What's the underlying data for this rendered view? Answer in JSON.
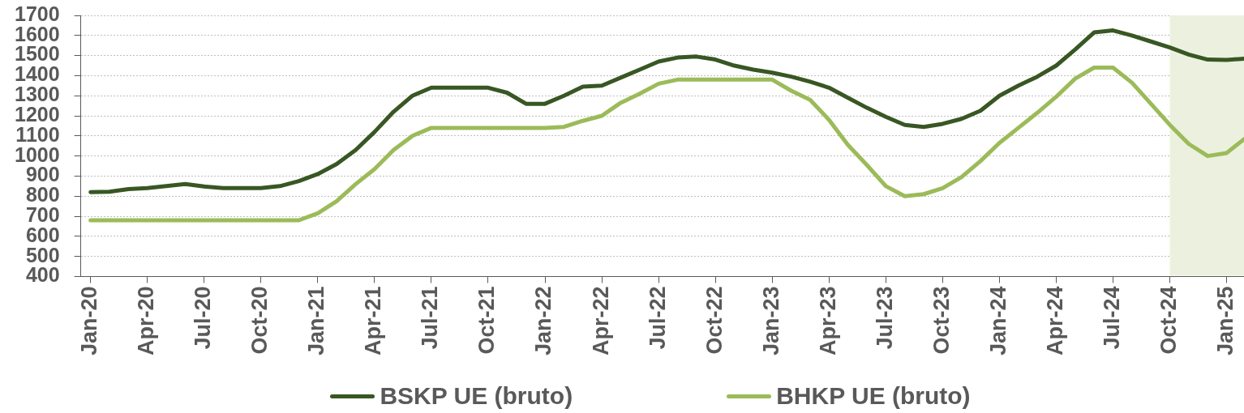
{
  "chart_data": {
    "type": "line",
    "x": [
      "2020-01",
      "2020-02",
      "2020-03",
      "2020-04",
      "2020-05",
      "2020-06",
      "2020-07",
      "2020-08",
      "2020-09",
      "2020-10",
      "2020-11",
      "2020-12",
      "2021-01",
      "2021-02",
      "2021-03",
      "2021-04",
      "2021-05",
      "2021-06",
      "2021-07",
      "2021-08",
      "2021-09",
      "2021-10",
      "2021-11",
      "2021-12",
      "2022-01",
      "2022-02",
      "2022-03",
      "2022-04",
      "2022-05",
      "2022-06",
      "2022-07",
      "2022-08",
      "2022-09",
      "2022-10",
      "2022-11",
      "2022-12",
      "2023-01",
      "2023-02",
      "2023-03",
      "2023-04",
      "2023-05",
      "2023-06",
      "2023-07",
      "2023-08",
      "2023-09",
      "2023-10",
      "2023-11",
      "2023-12",
      "2024-01",
      "2024-02",
      "2024-03",
      "2024-04",
      "2024-05",
      "2024-06",
      "2024-07",
      "2024-08",
      "2024-09",
      "2024-10",
      "2024-11",
      "2024-12",
      "2025-01",
      "2025-02"
    ],
    "series": [
      {
        "name": "BSKP UE (bruto)",
        "color": "#385723",
        "values": [
          820,
          822,
          835,
          840,
          850,
          860,
          848,
          840,
          840,
          840,
          850,
          875,
          910,
          960,
          1030,
          1120,
          1220,
          1300,
          1340,
          1340,
          1340,
          1340,
          1315,
          1260,
          1260,
          1300,
          1345,
          1350,
          1390,
          1430,
          1470,
          1490,
          1495,
          1480,
          1450,
          1430,
          1415,
          1395,
          1370,
          1340,
          1290,
          1240,
          1195,
          1155,
          1145,
          1160,
          1185,
          1225,
          1300,
          1350,
          1395,
          1450,
          1530,
          1615,
          1625,
          1600,
          1570,
          1540,
          1505,
          1480,
          1478,
          1485
        ]
      },
      {
        "name": "BHKP UE (bruto)",
        "color": "#9bbb59",
        "values": [
          680,
          680,
          680,
          680,
          680,
          680,
          680,
          680,
          680,
          680,
          680,
          680,
          715,
          775,
          860,
          935,
          1030,
          1100,
          1140,
          1140,
          1140,
          1140,
          1140,
          1140,
          1140,
          1145,
          1175,
          1200,
          1265,
          1310,
          1360,
          1380,
          1380,
          1380,
          1380,
          1380,
          1380,
          1325,
          1280,
          1180,
          1055,
          955,
          850,
          800,
          810,
          840,
          895,
          975,
          1065,
          1140,
          1215,
          1295,
          1385,
          1440,
          1440,
          1365,
          1260,
          1155,
          1060,
          1000,
          1015,
          1090
        ]
      }
    ],
    "xlim": [
      "2019-12-16",
      "2025-02"
    ],
    "xticks": [
      {
        "value": "2020-01",
        "label": "Jan-20"
      },
      {
        "value": "2020-04",
        "label": "Apr-20"
      },
      {
        "value": "2020-07",
        "label": "Jul-20"
      },
      {
        "value": "2020-10",
        "label": "Oct-20"
      },
      {
        "value": "2021-01",
        "label": "Jan-21"
      },
      {
        "value": "2021-04",
        "label": "Apr-21"
      },
      {
        "value": "2021-07",
        "label": "Jul-21"
      },
      {
        "value": "2021-10",
        "label": "Oct-21"
      },
      {
        "value": "2022-01",
        "label": "Jan-22"
      },
      {
        "value": "2022-04",
        "label": "Apr-22"
      },
      {
        "value": "2022-07",
        "label": "Jul-22"
      },
      {
        "value": "2022-10",
        "label": "Oct-22"
      },
      {
        "value": "2023-01",
        "label": "Jan-23"
      },
      {
        "value": "2023-04",
        "label": "Apr-23"
      },
      {
        "value": "2023-07",
        "label": "Jul-23"
      },
      {
        "value": "2023-10",
        "label": "Oct-23"
      },
      {
        "value": "2024-01",
        "label": "Jan-24"
      },
      {
        "value": "2024-04",
        "label": "Apr-24"
      },
      {
        "value": "2024-07",
        "label": "Jul-24"
      },
      {
        "value": "2024-10",
        "label": "Oct-24"
      },
      {
        "value": "2025-01",
        "label": "Jan-25"
      }
    ],
    "ylim": [
      400,
      1700
    ],
    "yticks": [
      400,
      500,
      600,
      700,
      800,
      900,
      1000,
      1100,
      1200,
      1300,
      1400,
      1500,
      1600,
      1700
    ],
    "bands": [
      {
        "axis": "x",
        "from": "2024-10",
        "to": "2025-02",
        "color": "#ebf1de"
      }
    ],
    "grid": "y",
    "legend": "bottom"
  }
}
